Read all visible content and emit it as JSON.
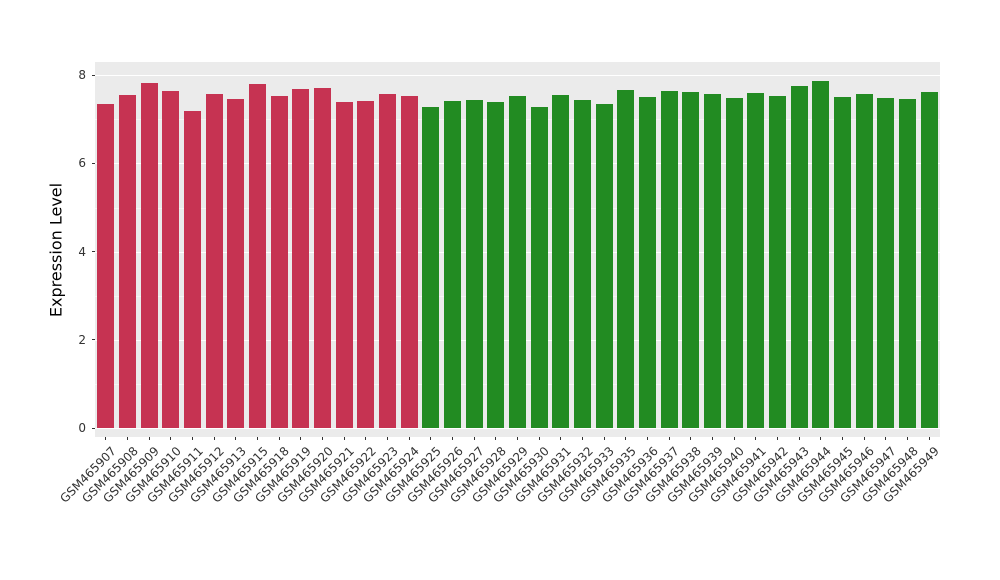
{
  "figure": {
    "background": "#FFFFFF",
    "panel_background": "#EBEBEB",
    "grid_color": "#FFFFFF",
    "axis_text_color": "#333333"
  },
  "chart_data": {
    "type": "bar",
    "title": "",
    "xlabel": "",
    "ylabel": "Expression Level",
    "ylim": [
      -0.2,
      8.3
    ],
    "yticks": [
      0,
      2,
      4,
      6,
      8
    ],
    "grid": true,
    "legend": false,
    "bar_width_fraction": 0.8,
    "categories": [
      "GSM465907",
      "GSM465908",
      "GSM465909",
      "GSM465910",
      "GSM465911",
      "GSM465912",
      "GSM465913",
      "GSM465915",
      "GSM465918",
      "GSM465919",
      "GSM465920",
      "GSM465921",
      "GSM465922",
      "GSM465923",
      "GSM465924",
      "GSM465925",
      "GSM465926",
      "GSM465927",
      "GSM465928",
      "GSM465929",
      "GSM465930",
      "GSM465931",
      "GSM465932",
      "GSM465933",
      "GSM465935",
      "GSM465936",
      "GSM465937",
      "GSM465938",
      "GSM465939",
      "GSM465940",
      "GSM465941",
      "GSM465942",
      "GSM465943",
      "GSM465944",
      "GSM465945",
      "GSM465946",
      "GSM465947",
      "GSM465948",
      "GSM465949"
    ],
    "values": [
      7.34,
      7.56,
      7.82,
      7.65,
      7.18,
      7.58,
      7.46,
      7.8,
      7.52,
      7.68,
      7.71,
      7.39,
      7.41,
      7.58,
      7.54,
      7.27,
      7.41,
      7.43,
      7.4,
      7.54,
      7.29,
      7.55,
      7.43,
      7.34,
      7.67,
      7.5,
      7.65,
      7.62,
      7.58,
      7.49,
      7.6,
      7.54,
      7.75,
      7.88,
      7.51,
      7.57,
      7.49,
      7.47,
      7.61
    ],
    "groups": [
      "A",
      "A",
      "A",
      "A",
      "A",
      "A",
      "A",
      "A",
      "A",
      "A",
      "A",
      "A",
      "A",
      "A",
      "A",
      "B",
      "B",
      "B",
      "B",
      "B",
      "B",
      "B",
      "B",
      "B",
      "B",
      "B",
      "B",
      "B",
      "B",
      "B",
      "B",
      "B",
      "B",
      "B",
      "B",
      "B",
      "B",
      "B",
      "B"
    ],
    "group_colors": {
      "A": "#C63352",
      "B": "#228B22"
    }
  }
}
